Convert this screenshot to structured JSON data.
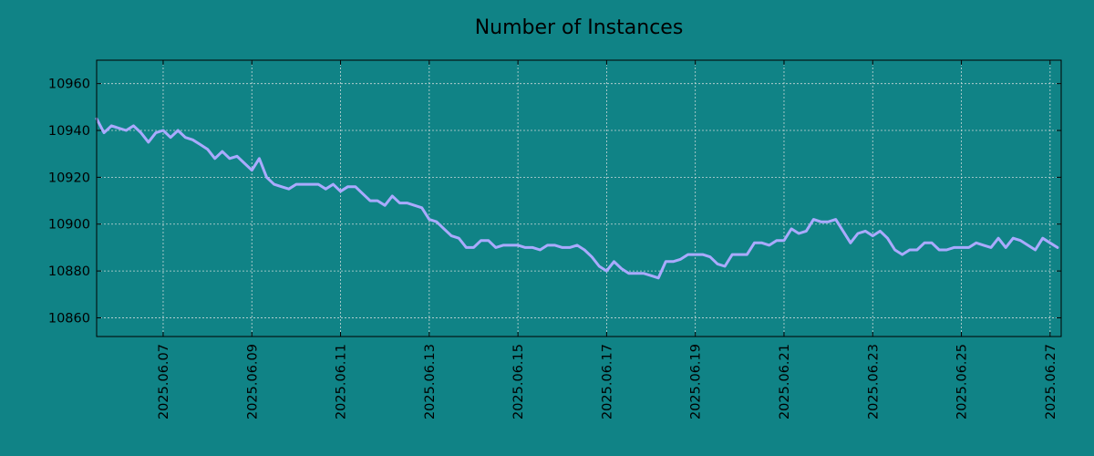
{
  "colors": {
    "background": "#108386",
    "line": "#aaaaff",
    "grid": "#c9d8d8",
    "axis": "#000000"
  },
  "chart_data": {
    "type": "line",
    "title": "Number of Instances",
    "xlabel": "",
    "ylabel": "",
    "grid": true,
    "legend": "none",
    "xlim": [
      "2025-06-05 12:00",
      "2025-06-27 06:00"
    ],
    "ylim": [
      10852,
      10970
    ],
    "y_ticks": [
      10860,
      10880,
      10900,
      10920,
      10940,
      10960
    ],
    "x_ticks": [
      "2025.06.07",
      "2025.06.09",
      "2025.06.11",
      "2025.06.13",
      "2025.06.15",
      "2025.06.17",
      "2025.06.19",
      "2025.06.21",
      "2025.06.23",
      "2025.06.25",
      "2025.06.27"
    ],
    "series": [
      {
        "points": [
          [
            "2025-06-05 12:00",
            10945
          ],
          [
            "2025-06-05 16:00",
            10939
          ],
          [
            "2025-06-05 20:00",
            10942
          ],
          [
            "2025-06-06 00:00",
            10941
          ],
          [
            "2025-06-06 04:00",
            10940
          ],
          [
            "2025-06-06 08:00",
            10942
          ],
          [
            "2025-06-06 12:00",
            10939
          ],
          [
            "2025-06-06 16:00",
            10935
          ],
          [
            "2025-06-06 20:00",
            10939
          ],
          [
            "2025-06-07 00:00",
            10940
          ],
          [
            "2025-06-07 04:00",
            10937
          ],
          [
            "2025-06-07 08:00",
            10940
          ],
          [
            "2025-06-07 12:00",
            10937
          ],
          [
            "2025-06-07 16:00",
            10936
          ],
          [
            "2025-06-07 20:00",
            10934
          ],
          [
            "2025-06-08 00:00",
            10932
          ],
          [
            "2025-06-08 04:00",
            10928
          ],
          [
            "2025-06-08 08:00",
            10931
          ],
          [
            "2025-06-08 12:00",
            10928
          ],
          [
            "2025-06-08 16:00",
            10929
          ],
          [
            "2025-06-08 20:00",
            10926
          ],
          [
            "2025-06-09 00:00",
            10923
          ],
          [
            "2025-06-09 04:00",
            10928
          ],
          [
            "2025-06-09 08:00",
            10920
          ],
          [
            "2025-06-09 12:00",
            10917
          ],
          [
            "2025-06-09 16:00",
            10916
          ],
          [
            "2025-06-09 20:00",
            10915
          ],
          [
            "2025-06-10 00:00",
            10917
          ],
          [
            "2025-06-10 04:00",
            10917
          ],
          [
            "2025-06-10 08:00",
            10917
          ],
          [
            "2025-06-10 12:00",
            10917
          ],
          [
            "2025-06-10 16:00",
            10915
          ],
          [
            "2025-06-10 20:00",
            10917
          ],
          [
            "2025-06-11 00:00",
            10914
          ],
          [
            "2025-06-11 04:00",
            10916
          ],
          [
            "2025-06-11 08:00",
            10916
          ],
          [
            "2025-06-11 12:00",
            10913
          ],
          [
            "2025-06-11 16:00",
            10910
          ],
          [
            "2025-06-11 20:00",
            10910
          ],
          [
            "2025-06-12 00:00",
            10908
          ],
          [
            "2025-06-12 04:00",
            10912
          ],
          [
            "2025-06-12 08:00",
            10909
          ],
          [
            "2025-06-12 12:00",
            10909
          ],
          [
            "2025-06-12 16:00",
            10908
          ],
          [
            "2025-06-12 20:00",
            10907
          ],
          [
            "2025-06-13 00:00",
            10902
          ],
          [
            "2025-06-13 04:00",
            10901
          ],
          [
            "2025-06-13 08:00",
            10898
          ],
          [
            "2025-06-13 12:00",
            10895
          ],
          [
            "2025-06-13 16:00",
            10894
          ],
          [
            "2025-06-13 20:00",
            10890
          ],
          [
            "2025-06-14 00:00",
            10890
          ],
          [
            "2025-06-14 04:00",
            10893
          ],
          [
            "2025-06-14 08:00",
            10893
          ],
          [
            "2025-06-14 12:00",
            10890
          ],
          [
            "2025-06-14 16:00",
            10891
          ],
          [
            "2025-06-14 20:00",
            10891
          ],
          [
            "2025-06-15 00:00",
            10891
          ],
          [
            "2025-06-15 04:00",
            10890
          ],
          [
            "2025-06-15 08:00",
            10890
          ],
          [
            "2025-06-15 12:00",
            10889
          ],
          [
            "2025-06-15 16:00",
            10891
          ],
          [
            "2025-06-15 20:00",
            10891
          ],
          [
            "2025-06-16 00:00",
            10890
          ],
          [
            "2025-06-16 04:00",
            10890
          ],
          [
            "2025-06-16 08:00",
            10891
          ],
          [
            "2025-06-16 12:00",
            10889
          ],
          [
            "2025-06-16 16:00",
            10886
          ],
          [
            "2025-06-16 20:00",
            10882
          ],
          [
            "2025-06-17 00:00",
            10880
          ],
          [
            "2025-06-17 04:00",
            10884
          ],
          [
            "2025-06-17 08:00",
            10881
          ],
          [
            "2025-06-17 12:00",
            10879
          ],
          [
            "2025-06-17 16:00",
            10879
          ],
          [
            "2025-06-17 20:00",
            10879
          ],
          [
            "2025-06-18 00:00",
            10878
          ],
          [
            "2025-06-18 04:00",
            10877
          ],
          [
            "2025-06-18 08:00",
            10884
          ],
          [
            "2025-06-18 12:00",
            10884
          ],
          [
            "2025-06-18 16:00",
            10885
          ],
          [
            "2025-06-18 20:00",
            10887
          ],
          [
            "2025-06-19 00:00",
            10887
          ],
          [
            "2025-06-19 04:00",
            10887
          ],
          [
            "2025-06-19 08:00",
            10886
          ],
          [
            "2025-06-19 12:00",
            10883
          ],
          [
            "2025-06-19 16:00",
            10882
          ],
          [
            "2025-06-19 20:00",
            10887
          ],
          [
            "2025-06-20 00:00",
            10887
          ],
          [
            "2025-06-20 04:00",
            10887
          ],
          [
            "2025-06-20 08:00",
            10892
          ],
          [
            "2025-06-20 12:00",
            10892
          ],
          [
            "2025-06-20 16:00",
            10891
          ],
          [
            "2025-06-20 20:00",
            10893
          ],
          [
            "2025-06-21 00:00",
            10893
          ],
          [
            "2025-06-21 04:00",
            10898
          ],
          [
            "2025-06-21 08:00",
            10896
          ],
          [
            "2025-06-21 12:00",
            10897
          ],
          [
            "2025-06-21 16:00",
            10902
          ],
          [
            "2025-06-21 20:00",
            10901
          ],
          [
            "2025-06-22 00:00",
            10901
          ],
          [
            "2025-06-22 04:00",
            10902
          ],
          [
            "2025-06-22 08:00",
            10897
          ],
          [
            "2025-06-22 12:00",
            10892
          ],
          [
            "2025-06-22 16:00",
            10896
          ],
          [
            "2025-06-22 20:00",
            10897
          ],
          [
            "2025-06-23 00:00",
            10895
          ],
          [
            "2025-06-23 04:00",
            10897
          ],
          [
            "2025-06-23 08:00",
            10894
          ],
          [
            "2025-06-23 12:00",
            10889
          ],
          [
            "2025-06-23 16:00",
            10887
          ],
          [
            "2025-06-23 20:00",
            10889
          ],
          [
            "2025-06-24 00:00",
            10889
          ],
          [
            "2025-06-24 04:00",
            10892
          ],
          [
            "2025-06-24 08:00",
            10892
          ],
          [
            "2025-06-24 12:00",
            10889
          ],
          [
            "2025-06-24 16:00",
            10889
          ],
          [
            "2025-06-24 20:00",
            10890
          ],
          [
            "2025-06-25 00:00",
            10890
          ],
          [
            "2025-06-25 04:00",
            10890
          ],
          [
            "2025-06-25 08:00",
            10892
          ],
          [
            "2025-06-25 12:00",
            10891
          ],
          [
            "2025-06-25 16:00",
            10890
          ],
          [
            "2025-06-25 20:00",
            10894
          ],
          [
            "2025-06-26 00:00",
            10890
          ],
          [
            "2025-06-26 04:00",
            10894
          ],
          [
            "2025-06-26 08:00",
            10893
          ],
          [
            "2025-06-26 12:00",
            10891
          ],
          [
            "2025-06-26 16:00",
            10889
          ],
          [
            "2025-06-26 20:00",
            10894
          ],
          [
            "2025-06-27 00:00",
            10892
          ],
          [
            "2025-06-27 04:00",
            10890
          ]
        ]
      }
    ]
  }
}
